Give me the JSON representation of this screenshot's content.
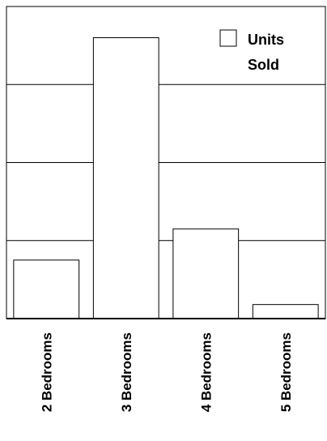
{
  "chart_data": {
    "type": "bar",
    "categories": [
      "2 Bedrooms",
      "3 Bedrooms",
      "4 Bedrooms",
      "5 Bedrooms"
    ],
    "series": [
      {
        "name": "Units Sold",
        "values": [
          0.75,
          3.6,
          1.15,
          0.18
        ]
      }
    ],
    "ylim": [
      0,
      4
    ],
    "grid": true,
    "legend": {
      "position": "top-right",
      "line1": "Units",
      "line2": "Sold"
    },
    "colors": {
      "bar_fill": "#ffffff",
      "stroke": "#000000",
      "background": "#ffffff"
    }
  }
}
